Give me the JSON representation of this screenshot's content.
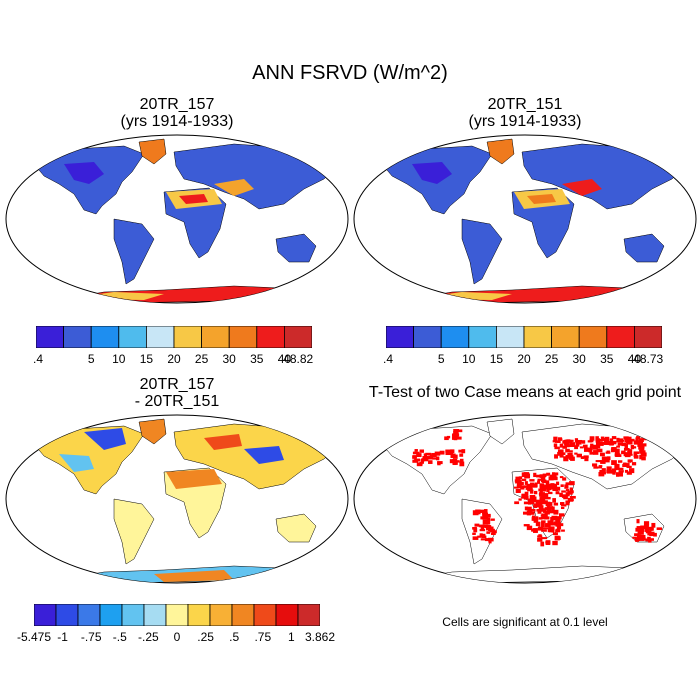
{
  "figure": {
    "title": "ANN FSRVD (W/m^2)"
  },
  "panels": [
    {
      "id": "p1",
      "title_line1": "20TR_157",
      "title_line2": "(yrs 1914-1933)",
      "colorbar": {
        "colors": [
          "#3a1fd8",
          "#3c5cd6",
          "#1e8ef0",
          "#4fbbed",
          "#c8e6f6",
          "#f7c846",
          "#f4a32c",
          "#ef7a1d",
          "#ee1c1c",
          "#cc2a2a"
        ],
        "labels": [
          ".4",
          "5",
          "10",
          "15",
          "20",
          "25",
          "30",
          "35",
          "40",
          "48.82"
        ]
      }
    },
    {
      "id": "p2",
      "title_line1": "20TR_151",
      "title_line2": "(yrs 1914-1933)",
      "colorbar": {
        "colors": [
          "#3a1fd8",
          "#3c5cd6",
          "#1e8ef0",
          "#4fbbed",
          "#c8e6f6",
          "#f7c846",
          "#f4a32c",
          "#ef7a1d",
          "#ee1c1c",
          "#cc2a2a"
        ],
        "labels": [
          ".4",
          "5",
          "10",
          "15",
          "20",
          "25",
          "30",
          "35",
          "40",
          "48.73"
        ]
      }
    },
    {
      "id": "p3",
      "title_line1": "20TR_157",
      "title_line2": " - 20TR_151",
      "colorbar": {
        "colors": [
          "#3a1fd8",
          "#2e4be6",
          "#3b79e8",
          "#1ea0f0",
          "#62c3f0",
          "#a6dcf2",
          "#fff59a",
          "#fbd54a",
          "#f8b035",
          "#f08622",
          "#ef4a1a",
          "#e60d0d",
          "#cc2a2a"
        ],
        "labels": [
          "-5.475",
          "-1",
          "-.75",
          "-.5",
          "-.25",
          "0",
          ".25",
          ".5",
          ".75",
          "1",
          "3.862"
        ]
      }
    },
    {
      "id": "p4",
      "title_line1": "T-Test of two Case means at each grid point",
      "note": "Cells are significant at 0.1 level",
      "sig_color": "#ff0000"
    }
  ]
}
